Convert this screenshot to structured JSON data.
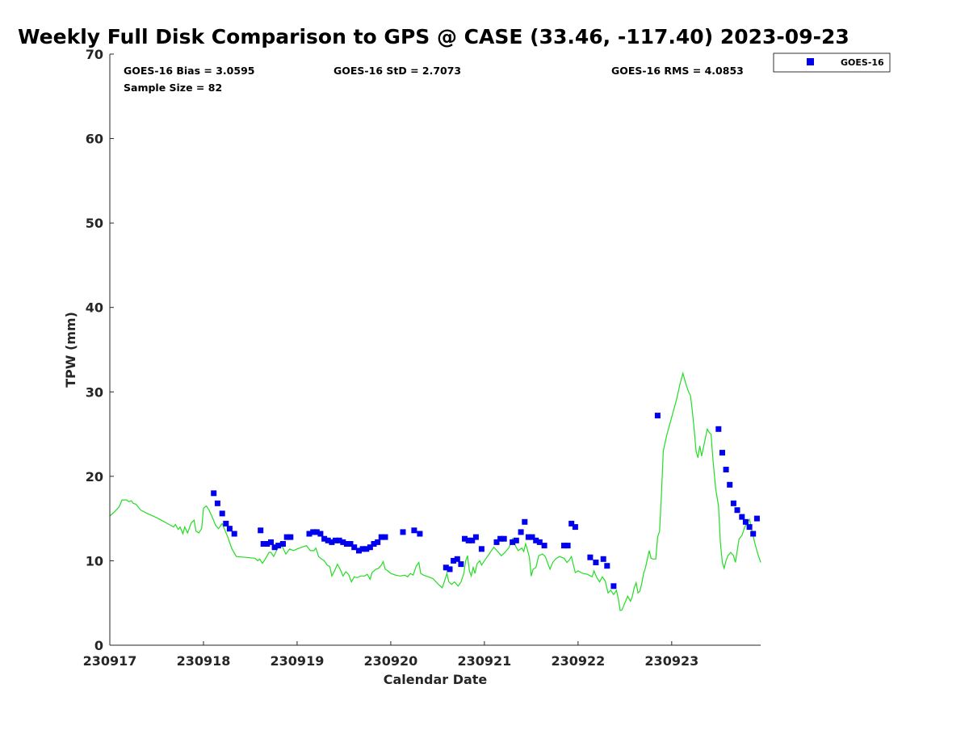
{
  "chart_data": {
    "type": "scatter",
    "title": "Weekly Full Disk Comparison to GPS @ CASE (33.46, -117.40) 2023-09-23",
    "xlabel": "Calendar Date",
    "ylabel": "TPW (mm)",
    "xlim": [
      0,
      6.95
    ],
    "ylim": [
      0,
      70
    ],
    "y_ticks": [
      0,
      10,
      20,
      30,
      40,
      50,
      60,
      70
    ],
    "x_ticks": [
      {
        "value": 0,
        "label": "230917"
      },
      {
        "value": 1,
        "label": "230918"
      },
      {
        "value": 2,
        "label": "230919"
      },
      {
        "value": 3,
        "label": "230920"
      },
      {
        "value": 4,
        "label": "230921"
      },
      {
        "value": 5,
        "label": "230922"
      },
      {
        "value": 6,
        "label": "230923"
      }
    ],
    "grid": false,
    "legend": {
      "placement": "outside-top-right",
      "entries": [
        {
          "label": "GOES-16",
          "color": "#0000ee",
          "marker": "square"
        }
      ]
    },
    "stats": {
      "bias": "GOES-16 Bias = 3.0595",
      "std": "GOES-16 StD = 2.7073",
      "rms": "GOES-16 RMS = 4.0853",
      "sample": "Sample Size = 82"
    },
    "series": [
      {
        "name": "GOES-16",
        "kind": "scatter",
        "color": "#0000ee",
        "points": [
          [
            1.11,
            18.0
          ],
          [
            1.15,
            16.8
          ],
          [
            1.2,
            15.6
          ],
          [
            1.24,
            14.4
          ],
          [
            1.28,
            13.8
          ],
          [
            1.33,
            13.2
          ],
          [
            1.61,
            13.6
          ],
          [
            1.64,
            12.0
          ],
          [
            1.68,
            12.0
          ],
          [
            1.72,
            12.2
          ],
          [
            1.76,
            11.6
          ],
          [
            1.8,
            11.8
          ],
          [
            1.85,
            12.0
          ],
          [
            1.89,
            12.8
          ],
          [
            1.93,
            12.8
          ],
          [
            2.13,
            13.2
          ],
          [
            2.17,
            13.4
          ],
          [
            2.21,
            13.4
          ],
          [
            2.25,
            13.2
          ],
          [
            2.29,
            12.6
          ],
          [
            2.33,
            12.4
          ],
          [
            2.37,
            12.2
          ],
          [
            2.41,
            12.4
          ],
          [
            2.45,
            12.4
          ],
          [
            2.49,
            12.2
          ],
          [
            2.53,
            12.0
          ],
          [
            2.57,
            12.0
          ],
          [
            2.61,
            11.6
          ],
          [
            2.66,
            11.2
          ],
          [
            2.7,
            11.4
          ],
          [
            2.74,
            11.4
          ],
          [
            2.78,
            11.6
          ],
          [
            2.82,
            12.0
          ],
          [
            2.86,
            12.2
          ],
          [
            2.9,
            12.8
          ],
          [
            2.94,
            12.8
          ],
          [
            3.13,
            13.4
          ],
          [
            3.25,
            13.6
          ],
          [
            3.31,
            13.2
          ],
          [
            3.59,
            9.2
          ],
          [
            3.63,
            9.0
          ],
          [
            3.67,
            10.0
          ],
          [
            3.71,
            10.2
          ],
          [
            3.75,
            9.6
          ],
          [
            3.79,
            12.6
          ],
          [
            3.83,
            12.4
          ],
          [
            3.87,
            12.4
          ],
          [
            3.91,
            12.8
          ],
          [
            3.97,
            11.4
          ],
          [
            4.13,
            12.2
          ],
          [
            4.17,
            12.6
          ],
          [
            4.21,
            12.6
          ],
          [
            4.3,
            12.2
          ],
          [
            4.34,
            12.4
          ],
          [
            4.39,
            13.4
          ],
          [
            4.43,
            14.6
          ],
          [
            4.47,
            12.8
          ],
          [
            4.51,
            12.8
          ],
          [
            4.55,
            12.4
          ],
          [
            4.59,
            12.2
          ],
          [
            4.64,
            11.8
          ],
          [
            4.85,
            11.8
          ],
          [
            4.89,
            11.8
          ],
          [
            4.93,
            14.4
          ],
          [
            4.97,
            14.0
          ],
          [
            5.13,
            10.4
          ],
          [
            5.19,
            9.8
          ],
          [
            5.27,
            10.2
          ],
          [
            5.31,
            9.4
          ],
          [
            5.38,
            7.0
          ],
          [
            5.85,
            27.2
          ],
          [
            6.5,
            25.6
          ],
          [
            6.54,
            22.8
          ],
          [
            6.58,
            20.8
          ],
          [
            6.62,
            19.0
          ],
          [
            6.66,
            16.8
          ],
          [
            6.7,
            16.0
          ],
          [
            6.75,
            15.2
          ],
          [
            6.79,
            14.6
          ],
          [
            6.83,
            14.0
          ],
          [
            6.87,
            13.2
          ],
          [
            6.91,
            15.0
          ]
        ]
      },
      {
        "kind": "line",
        "color": "#22dd22",
        "points": [
          [
            0.0,
            15.3
          ],
          [
            0.05,
            15.8
          ],
          [
            0.1,
            16.4
          ],
          [
            0.13,
            17.2
          ],
          [
            0.18,
            17.2
          ],
          [
            0.2,
            17.0
          ],
          [
            0.23,
            17.1
          ],
          [
            0.25,
            16.8
          ],
          [
            0.28,
            16.7
          ],
          [
            0.3,
            16.4
          ],
          [
            0.33,
            16.0
          ],
          [
            0.4,
            15.6
          ],
          [
            0.5,
            15.1
          ],
          [
            0.55,
            14.8
          ],
          [
            0.6,
            14.5
          ],
          [
            0.65,
            14.2
          ],
          [
            0.68,
            14.0
          ],
          [
            0.7,
            14.3
          ],
          [
            0.73,
            13.7
          ],
          [
            0.75,
            14.0
          ],
          [
            0.78,
            13.2
          ],
          [
            0.8,
            14.0
          ],
          [
            0.83,
            13.3
          ],
          [
            0.87,
            14.5
          ],
          [
            0.9,
            14.8
          ],
          [
            0.92,
            13.5
          ],
          [
            0.95,
            13.3
          ],
          [
            0.98,
            13.8
          ],
          [
            1.0,
            16.2
          ],
          [
            1.03,
            16.5
          ],
          [
            1.06,
            16.0
          ],
          [
            1.1,
            15.0
          ],
          [
            1.13,
            14.2
          ],
          [
            1.16,
            13.8
          ],
          [
            1.2,
            14.4
          ],
          [
            1.23,
            13.6
          ],
          [
            1.26,
            12.8
          ],
          [
            1.3,
            11.5
          ],
          [
            1.35,
            10.5
          ],
          [
            1.45,
            10.4
          ],
          [
            1.55,
            10.3
          ],
          [
            1.58,
            10.0
          ],
          [
            1.6,
            10.2
          ],
          [
            1.63,
            9.7
          ],
          [
            1.66,
            10.2
          ],
          [
            1.7,
            11.0
          ],
          [
            1.72,
            11.0
          ],
          [
            1.75,
            10.5
          ],
          [
            1.78,
            11.2
          ],
          [
            1.82,
            12.2
          ],
          [
            1.85,
            11.5
          ],
          [
            1.88,
            10.8
          ],
          [
            1.92,
            11.4
          ],
          [
            1.96,
            11.2
          ],
          [
            2.0,
            11.4
          ],
          [
            2.05,
            11.6
          ],
          [
            2.1,
            11.8
          ],
          [
            2.14,
            11.2
          ],
          [
            2.18,
            11.2
          ],
          [
            2.2,
            11.5
          ],
          [
            2.23,
            10.5
          ],
          [
            2.26,
            10.2
          ],
          [
            2.29,
            10.0
          ],
          [
            2.32,
            9.5
          ],
          [
            2.35,
            9.3
          ],
          [
            2.37,
            8.2
          ],
          [
            2.4,
            8.8
          ],
          [
            2.43,
            9.6
          ],
          [
            2.46,
            9.0
          ],
          [
            2.49,
            8.2
          ],
          [
            2.52,
            8.7
          ],
          [
            2.55,
            8.4
          ],
          [
            2.58,
            7.5
          ],
          [
            2.61,
            8.1
          ],
          [
            2.64,
            8.0
          ],
          [
            2.68,
            8.2
          ],
          [
            2.72,
            8.2
          ],
          [
            2.75,
            8.4
          ],
          [
            2.78,
            7.8
          ],
          [
            2.8,
            8.6
          ],
          [
            2.84,
            9.0
          ],
          [
            2.87,
            9.1
          ],
          [
            2.9,
            9.5
          ],
          [
            2.92,
            9.9
          ],
          [
            2.94,
            9.0
          ],
          [
            2.97,
            8.8
          ],
          [
            3.0,
            8.5
          ],
          [
            3.05,
            8.3
          ],
          [
            3.1,
            8.2
          ],
          [
            3.15,
            8.3
          ],
          [
            3.18,
            8.1
          ],
          [
            3.21,
            8.5
          ],
          [
            3.24,
            8.3
          ],
          [
            3.27,
            9.3
          ],
          [
            3.3,
            9.8
          ],
          [
            3.32,
            8.5
          ],
          [
            3.35,
            8.3
          ],
          [
            3.4,
            8.1
          ],
          [
            3.45,
            7.9
          ],
          [
            3.5,
            7.3
          ],
          [
            3.55,
            6.8
          ],
          [
            3.58,
            7.8
          ],
          [
            3.6,
            8.5
          ],
          [
            3.62,
            7.5
          ],
          [
            3.65,
            7.2
          ],
          [
            3.68,
            7.5
          ],
          [
            3.72,
            7.0
          ],
          [
            3.75,
            7.5
          ],
          [
            3.78,
            8.5
          ],
          [
            3.8,
            10.0
          ],
          [
            3.82,
            10.6
          ],
          [
            3.84,
            8.8
          ],
          [
            3.86,
            8.2
          ],
          [
            3.88,
            9.2
          ],
          [
            3.9,
            8.5
          ],
          [
            3.92,
            9.6
          ],
          [
            3.95,
            10.0
          ],
          [
            3.97,
            9.5
          ],
          [
            4.0,
            10.0
          ],
          [
            4.05,
            10.8
          ],
          [
            4.1,
            11.6
          ],
          [
            4.15,
            11.0
          ],
          [
            4.18,
            10.6
          ],
          [
            4.22,
            11.0
          ],
          [
            4.26,
            11.5
          ],
          [
            4.3,
            12.6
          ],
          [
            4.33,
            11.8
          ],
          [
            4.36,
            11.2
          ],
          [
            4.4,
            11.5
          ],
          [
            4.42,
            11.1
          ],
          [
            4.44,
            12.0
          ],
          [
            4.46,
            11.3
          ],
          [
            4.48,
            10.4
          ],
          [
            4.5,
            8.2
          ],
          [
            4.52,
            9.0
          ],
          [
            4.55,
            9.2
          ],
          [
            4.58,
            10.6
          ],
          [
            4.62,
            10.8
          ],
          [
            4.65,
            10.5
          ],
          [
            4.68,
            9.6
          ],
          [
            4.7,
            9.0
          ],
          [
            4.73,
            9.8
          ],
          [
            4.76,
            10.2
          ],
          [
            4.8,
            10.5
          ],
          [
            4.85,
            10.3
          ],
          [
            4.88,
            9.8
          ],
          [
            4.9,
            10.0
          ],
          [
            4.93,
            10.5
          ],
          [
            4.95,
            9.5
          ],
          [
            4.97,
            8.6
          ],
          [
            5.0,
            8.8
          ],
          [
            5.05,
            8.5
          ],
          [
            5.1,
            8.4
          ],
          [
            5.15,
            8.1
          ],
          [
            5.17,
            8.8
          ],
          [
            5.2,
            8.0
          ],
          [
            5.23,
            7.5
          ],
          [
            5.26,
            8.1
          ],
          [
            5.29,
            7.6
          ],
          [
            5.32,
            6.2
          ],
          [
            5.35,
            6.5
          ],
          [
            5.38,
            6.0
          ],
          [
            5.41,
            6.5
          ],
          [
            5.43,
            5.5
          ],
          [
            5.45,
            4.1
          ],
          [
            5.47,
            4.2
          ],
          [
            5.5,
            5.0
          ],
          [
            5.53,
            5.8
          ],
          [
            5.56,
            5.2
          ],
          [
            5.58,
            5.8
          ],
          [
            5.6,
            6.8
          ],
          [
            5.62,
            7.4
          ],
          [
            5.64,
            6.2
          ],
          [
            5.66,
            6.4
          ],
          [
            5.68,
            7.3
          ],
          [
            5.7,
            8.5
          ],
          [
            5.72,
            9.2
          ],
          [
            5.74,
            10.2
          ],
          [
            5.76,
            11.2
          ],
          [
            5.78,
            10.3
          ],
          [
            5.8,
            10.2
          ],
          [
            5.83,
            10.2
          ],
          [
            5.85,
            12.8
          ],
          [
            5.87,
            13.5
          ],
          [
            5.89,
            17.8
          ],
          [
            5.91,
            23.0
          ],
          [
            5.95,
            25.0
          ],
          [
            6.0,
            27.0
          ],
          [
            6.05,
            29.0
          ],
          [
            6.09,
            31.0
          ],
          [
            6.12,
            32.2
          ],
          [
            6.15,
            31.0
          ],
          [
            6.18,
            30.0
          ],
          [
            6.2,
            29.6
          ],
          [
            6.22,
            27.8
          ],
          [
            6.24,
            25.5
          ],
          [
            6.26,
            23.0
          ],
          [
            6.28,
            22.2
          ],
          [
            6.3,
            23.6
          ],
          [
            6.32,
            22.4
          ],
          [
            6.35,
            24.0
          ],
          [
            6.38,
            25.6
          ],
          [
            6.4,
            25.2
          ],
          [
            6.42,
            25.0
          ],
          [
            6.44,
            22.0
          ],
          [
            6.47,
            18.5
          ],
          [
            6.5,
            16.5
          ],
          [
            6.52,
            12.2
          ],
          [
            6.54,
            9.8
          ],
          [
            6.56,
            9.1
          ],
          [
            6.58,
            10.0
          ],
          [
            6.6,
            10.6
          ],
          [
            6.63,
            11.0
          ],
          [
            6.66,
            10.6
          ],
          [
            6.68,
            9.8
          ],
          [
            6.7,
            11.2
          ],
          [
            6.72,
            12.6
          ],
          [
            6.75,
            13.0
          ],
          [
            6.78,
            14.0
          ],
          [
            6.8,
            14.4
          ],
          [
            6.83,
            14.9
          ],
          [
            6.86,
            13.4
          ],
          [
            6.89,
            12.0
          ],
          [
            6.92,
            10.8
          ],
          [
            6.95,
            9.8
          ]
        ]
      }
    ]
  }
}
